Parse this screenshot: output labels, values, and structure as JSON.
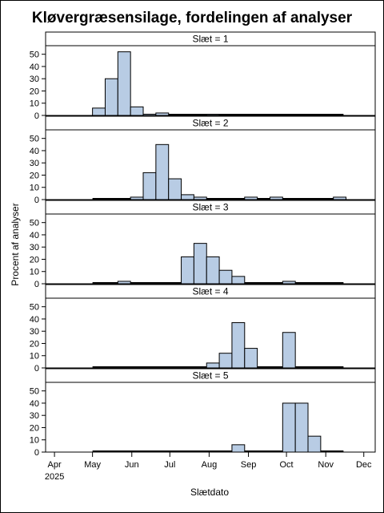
{
  "chart_data": {
    "type": "bar",
    "title": "Kløvergræsensilage, fordelingen af analyser",
    "xlabel": "Slætdato",
    "ylabel": "Procent af analyser",
    "ylim": [
      0,
      57
    ],
    "yticks": [
      0,
      10,
      20,
      30,
      40,
      50
    ],
    "x_range": [
      "2025-03-25",
      "2025-12-10"
    ],
    "xticks": [
      {
        "date": "2025-04-01",
        "label": "Apr",
        "sublabel": "2025"
      },
      {
        "date": "2025-05-01",
        "label": "May",
        "sublabel": ""
      },
      {
        "date": "2025-06-01",
        "label": "Jun",
        "sublabel": ""
      },
      {
        "date": "2025-07-01",
        "label": "Jul",
        "sublabel": ""
      },
      {
        "date": "2025-08-01",
        "label": "Aug",
        "sublabel": ""
      },
      {
        "date": "2025-09-01",
        "label": "Sep",
        "sublabel": ""
      },
      {
        "date": "2025-10-01",
        "label": "Oct",
        "sublabel": ""
      },
      {
        "date": "2025-11-01",
        "label": "Nov",
        "sublabel": ""
      },
      {
        "date": "2025-12-01",
        "label": "Dec",
        "sublabel": ""
      }
    ],
    "bin_width_days": 10,
    "baseline_range": [
      "2025-05-01",
      "2025-11-15"
    ],
    "bar_fill": "#b8cce4",
    "bar_stroke": "#000000",
    "panels": [
      {
        "label": "Slæt = 1",
        "bars": [
          {
            "start": "2025-05-01",
            "value": 6
          },
          {
            "start": "2025-05-11",
            "value": 30
          },
          {
            "start": "2025-05-21",
            "value": 52
          },
          {
            "start": "2025-05-31",
            "value": 7
          },
          {
            "start": "2025-06-10",
            "value": 1
          },
          {
            "start": "2025-06-20",
            "value": 2
          },
          {
            "start": "2025-07-30",
            "value": 0.8
          }
        ]
      },
      {
        "label": "Slæt = 2",
        "bars": [
          {
            "start": "2025-05-31",
            "value": 2
          },
          {
            "start": "2025-06-10",
            "value": 22
          },
          {
            "start": "2025-06-20",
            "value": 45
          },
          {
            "start": "2025-06-30",
            "value": 17
          },
          {
            "start": "2025-07-10",
            "value": 4
          },
          {
            "start": "2025-07-20",
            "value": 2
          },
          {
            "start": "2025-08-29",
            "value": 2
          },
          {
            "start": "2025-09-18",
            "value": 2
          },
          {
            "start": "2025-11-07",
            "value": 2
          }
        ]
      },
      {
        "label": "Slæt = 3",
        "bars": [
          {
            "start": "2025-05-21",
            "value": 2
          },
          {
            "start": "2025-07-10",
            "value": 22
          },
          {
            "start": "2025-07-20",
            "value": 33
          },
          {
            "start": "2025-07-30",
            "value": 22
          },
          {
            "start": "2025-08-09",
            "value": 11
          },
          {
            "start": "2025-08-19",
            "value": 6
          },
          {
            "start": "2025-09-28",
            "value": 2
          }
        ]
      },
      {
        "label": "Slæt = 4",
        "bars": [
          {
            "start": "2025-07-30",
            "value": 4
          },
          {
            "start": "2025-08-09",
            "value": 12
          },
          {
            "start": "2025-08-19",
            "value": 37
          },
          {
            "start": "2025-08-29",
            "value": 16
          },
          {
            "start": "2025-09-28",
            "value": 29
          }
        ]
      },
      {
        "label": "Slæt = 5",
        "bars": [
          {
            "start": "2025-08-19",
            "value": 6
          },
          {
            "start": "2025-09-28",
            "value": 40
          },
          {
            "start": "2025-10-08",
            "value": 40
          },
          {
            "start": "2025-10-18",
            "value": 13
          }
        ]
      }
    ]
  }
}
